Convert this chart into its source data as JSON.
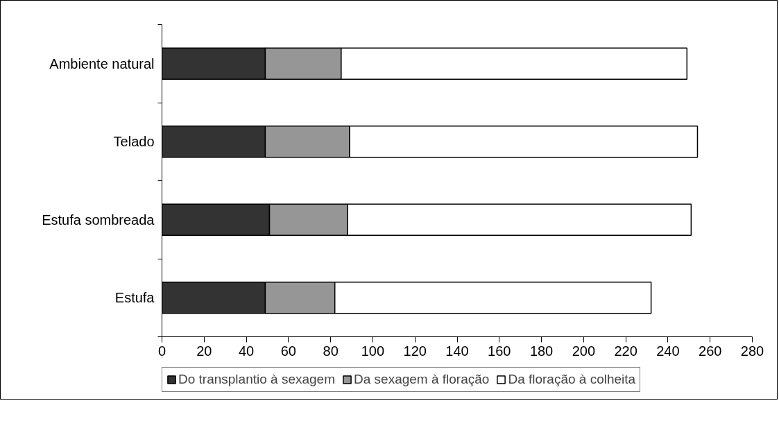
{
  "chart_data": {
    "type": "bar",
    "orientation": "horizontal",
    "stacked": true,
    "categories": [
      "Ambiente natural",
      "Telado",
      "Estufa sombreada",
      "Estufa"
    ],
    "series": [
      {
        "name": "Do transplantio à sexagem",
        "color": "#333333",
        "values": [
          49,
          49,
          51,
          49
        ]
      },
      {
        "name": "Da sexagem à floração",
        "color": "#969696",
        "values": [
          36,
          40,
          37,
          33
        ]
      },
      {
        "name": "Da floração à colheita",
        "color": "#ffffff",
        "values": [
          164,
          165,
          163,
          150
        ]
      }
    ],
    "xlim": [
      0,
      280
    ],
    "xticks": [
      0,
      20,
      40,
      60,
      80,
      100,
      120,
      140,
      160,
      180,
      200,
      220,
      240,
      260,
      280
    ],
    "grid": false,
    "legend": "bottom"
  }
}
